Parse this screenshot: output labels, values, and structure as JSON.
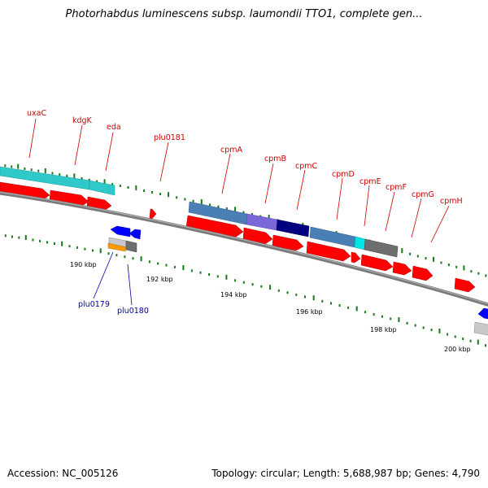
{
  "title": "Photorhabdus luminescens subsp. laumondii TTO1, complete gen...",
  "accession": "Accession: NC_005126",
  "topology": "Topology: circular; Length: 5,688,987 bp; Genes: 4,790",
  "colors": {
    "backbone": "#7a7a7a",
    "gc_tick": "#1a7a1a",
    "cds_red": "#ff0000",
    "label_red": "#cc0000",
    "label_blue": "#0000aa",
    "cyan": "#2fc9c9",
    "steelblue": "#4a7fb5",
    "mediumpurple": "#7b68d8",
    "navy": "#000080",
    "gray": "#6e6e6e",
    "orange": "#ff9900",
    "blue": "#0000ff"
  },
  "scale_labels": [
    "190 kbp",
    "192 kbp",
    "194 kbp",
    "196 kbp",
    "198 kbp",
    "200 kbp"
  ],
  "gene_labels": [
    {
      "name": "uxaC",
      "color": "red"
    },
    {
      "name": "kdgK",
      "color": "red"
    },
    {
      "name": "eda",
      "color": "red"
    },
    {
      "name": "plu0181",
      "color": "red"
    },
    {
      "name": "cpmA",
      "color": "red"
    },
    {
      "name": "cpmB",
      "color": "red"
    },
    {
      "name": "cpmC",
      "color": "red"
    },
    {
      "name": "cpmD",
      "color": "red"
    },
    {
      "name": "cpmE",
      "color": "red"
    },
    {
      "name": "cpmF",
      "color": "red"
    },
    {
      "name": "cpmG",
      "color": "red"
    },
    {
      "name": "cpmH",
      "color": "red"
    },
    {
      "name": "plu0179",
      "color": "blue"
    },
    {
      "name": "plu0180",
      "color": "blue"
    }
  ],
  "feature_icons": [
    "forward-cds-arrow",
    "reverse-cds-arrow",
    "cog-category-bar",
    "gc-skew-tick"
  ]
}
